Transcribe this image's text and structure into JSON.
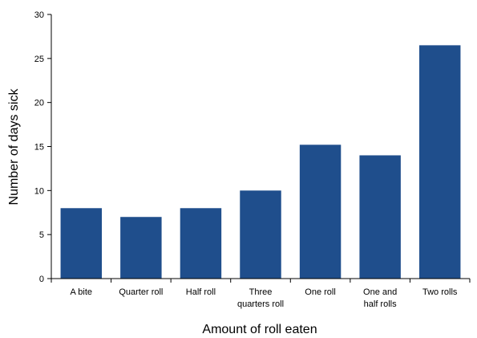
{
  "chart_data": {
    "type": "bar",
    "title": "",
    "xlabel": "Amount of roll eaten",
    "ylabel": "Number of days sick",
    "categories": [
      [
        "A bite"
      ],
      [
        "Quarter roll"
      ],
      [
        "Half roll"
      ],
      [
        "Three",
        "quarters roll"
      ],
      [
        "One roll"
      ],
      [
        "One and",
        "half rolls"
      ],
      [
        "Two rolls"
      ]
    ],
    "values": [
      8,
      7,
      8,
      10,
      15.2,
      14,
      26.5
    ],
    "ylim": [
      0,
      30
    ],
    "yticks": [
      0,
      5,
      10,
      15,
      20,
      25,
      30
    ],
    "grid": false,
    "bar_color": "#1f4e8c"
  }
}
